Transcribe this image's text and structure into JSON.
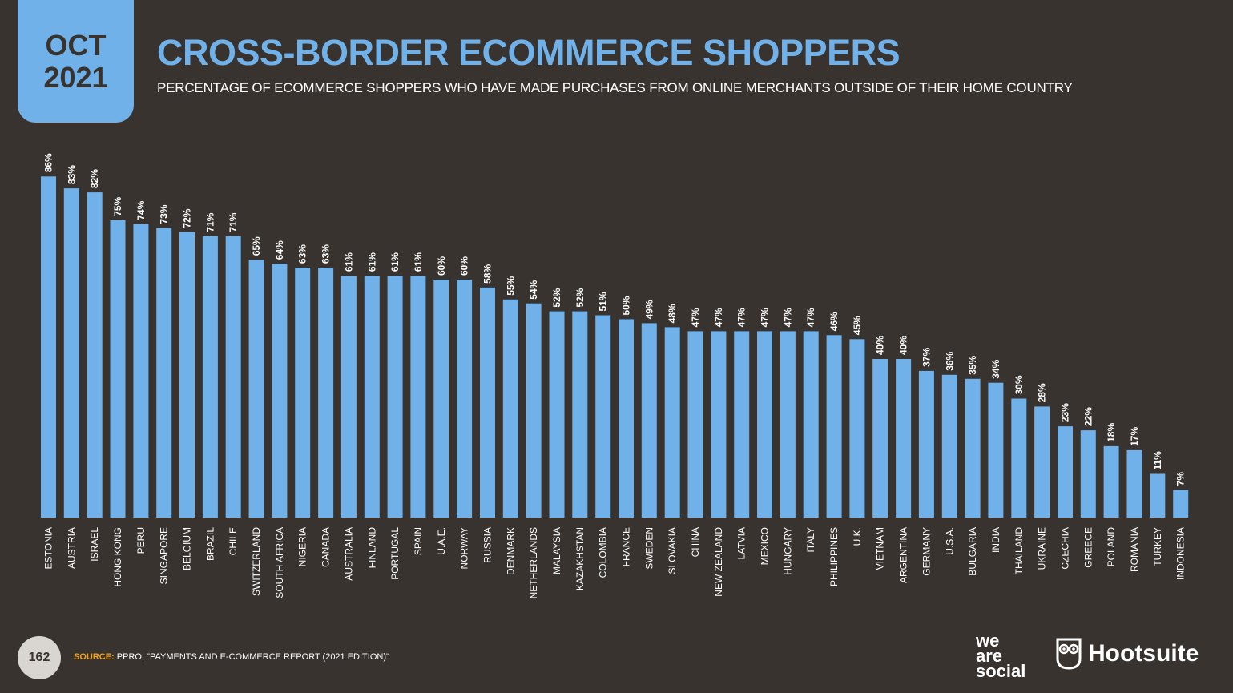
{
  "header": {
    "date_month": "OCT",
    "date_year": "2021",
    "title": "CROSS-BORDER ECOMMERCE SHOPPERS",
    "subtitle": "PERCENTAGE OF ECOMMERCE SHOPPERS WHO HAVE MADE PURCHASES FROM ONLINE MERCHANTS OUTSIDE OF THEIR HOME COUNTRY"
  },
  "footer": {
    "page_number": "162",
    "source_label": "SOURCE:",
    "source_text": "PPRO, \"PAYMENTS AND E-COMMERCE REPORT (2021 EDITION)\"",
    "logo_we": "we",
    "logo_are": "are",
    "logo_social": "social",
    "logo_hootsuite": "Hootsuite"
  },
  "colors": {
    "bar": "#6fb1e8",
    "background": "#38332f",
    "accent": "#f0a21e"
  },
  "chart_data": {
    "type": "bar",
    "categories": [
      "ESTONIA",
      "AUSTRIA",
      "ISRAEL",
      "HONG KONG",
      "PERU",
      "SINGAPORE",
      "BELGIUM",
      "BRAZIL",
      "CHILE",
      "SWITZERLAND",
      "SOUTH AFRICA",
      "NIGERIA",
      "CANADA",
      "AUSTRALIA",
      "FINLAND",
      "PORTUGAL",
      "SPAIN",
      "U.A.E.",
      "NORWAY",
      "RUSSIA",
      "DENMARK",
      "NETHERLANDS",
      "MALAYSIA",
      "KAZAKHSTAN",
      "COLOMBIA",
      "FRANCE",
      "SWEDEN",
      "SLOVAKIA",
      "CHINA",
      "NEW ZEALAND",
      "LATVIA",
      "MEXICO",
      "HUNGARY",
      "ITALY",
      "PHILIPPINES",
      "U.K.",
      "VIETNAM",
      "ARGENTINA",
      "GERMANY",
      "U.S.A.",
      "BULGARIA",
      "INDIA",
      "THAILAND",
      "UKRAINE",
      "CZECHIA",
      "GREECE",
      "POLAND",
      "ROMANIA",
      "TURKEY",
      "INDONESIA"
    ],
    "values": [
      86,
      83,
      82,
      75,
      74,
      73,
      72,
      71,
      71,
      65,
      64,
      63,
      63,
      61,
      61,
      61,
      61,
      60,
      60,
      58,
      55,
      54,
      52,
      52,
      51,
      50,
      49,
      48,
      47,
      47,
      47,
      47,
      47,
      47,
      46,
      45,
      40,
      40,
      37,
      36,
      35,
      34,
      30,
      28,
      23,
      22,
      18,
      17,
      11,
      7
    ],
    "labels": [
      "86%",
      "83%",
      "82%",
      "75%",
      "74%",
      "73%",
      "72%",
      "71%",
      "71%",
      "65%",
      "64%",
      "63%",
      "63%",
      "61%",
      "61%",
      "61%",
      "61%",
      "60%",
      "60%",
      "58%",
      "55%",
      "54%",
      "52%",
      "52%",
      "51%",
      "50%",
      "49%",
      "48%",
      "47%",
      "47%",
      "47%",
      "47%",
      "47%",
      "47%",
      "46%",
      "45%",
      "40%",
      "40%",
      "37%",
      "36%",
      "35%",
      "34%",
      "30%",
      "28%",
      "23%",
      "22%",
      "18%",
      "17%",
      "11%",
      "7%"
    ],
    "ylim": [
      0,
      100
    ],
    "grid": false,
    "legend": "none"
  }
}
